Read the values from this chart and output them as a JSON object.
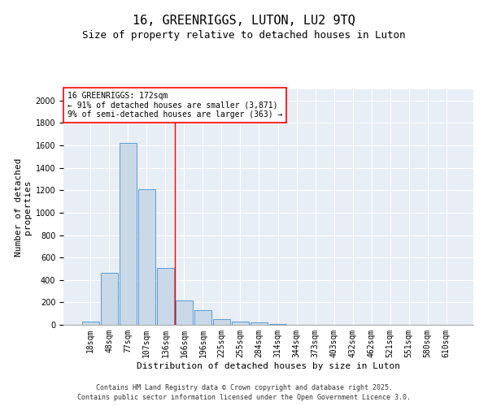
{
  "title": "16, GREENRIGGS, LUTON, LU2 9TQ",
  "subtitle": "Size of property relative to detached houses in Luton",
  "xlabel": "Distribution of detached houses by size in Luton",
  "ylabel": "Number of detached\nproperties",
  "categories": [
    "18sqm",
    "48sqm",
    "77sqm",
    "107sqm",
    "136sqm",
    "166sqm",
    "196sqm",
    "225sqm",
    "255sqm",
    "284sqm",
    "314sqm",
    "344sqm",
    "373sqm",
    "403sqm",
    "432sqm",
    "462sqm",
    "521sqm",
    "551sqm",
    "580sqm",
    "610sqm"
  ],
  "values": [
    30,
    460,
    1620,
    1210,
    510,
    220,
    130,
    50,
    30,
    20,
    10,
    0,
    0,
    0,
    0,
    0,
    0,
    0,
    0,
    0
  ],
  "bar_color": "#c9d9e8",
  "bar_edge_color": "#5b9bd5",
  "vline_color": "red",
  "vline_x_index": 4.5,
  "annotation_text": "16 GREENRIGGS: 172sqm\n← 91% of detached houses are smaller (3,871)\n9% of semi-detached houses are larger (363) →",
  "ylim": [
    0,
    2100
  ],
  "yticks": [
    0,
    200,
    400,
    600,
    800,
    1000,
    1200,
    1400,
    1600,
    1800,
    2000
  ],
  "plot_bg_color": "#e8eef5",
  "grid_color": "white",
  "footer1": "Contains HM Land Registry data © Crown copyright and database right 2025.",
  "footer2": "Contains public sector information licensed under the Open Government Licence 3.0.",
  "title_fontsize": 11,
  "subtitle_fontsize": 9,
  "axis_label_fontsize": 8,
  "tick_fontsize": 7,
  "annotation_fontsize": 7,
  "footer_fontsize": 6
}
